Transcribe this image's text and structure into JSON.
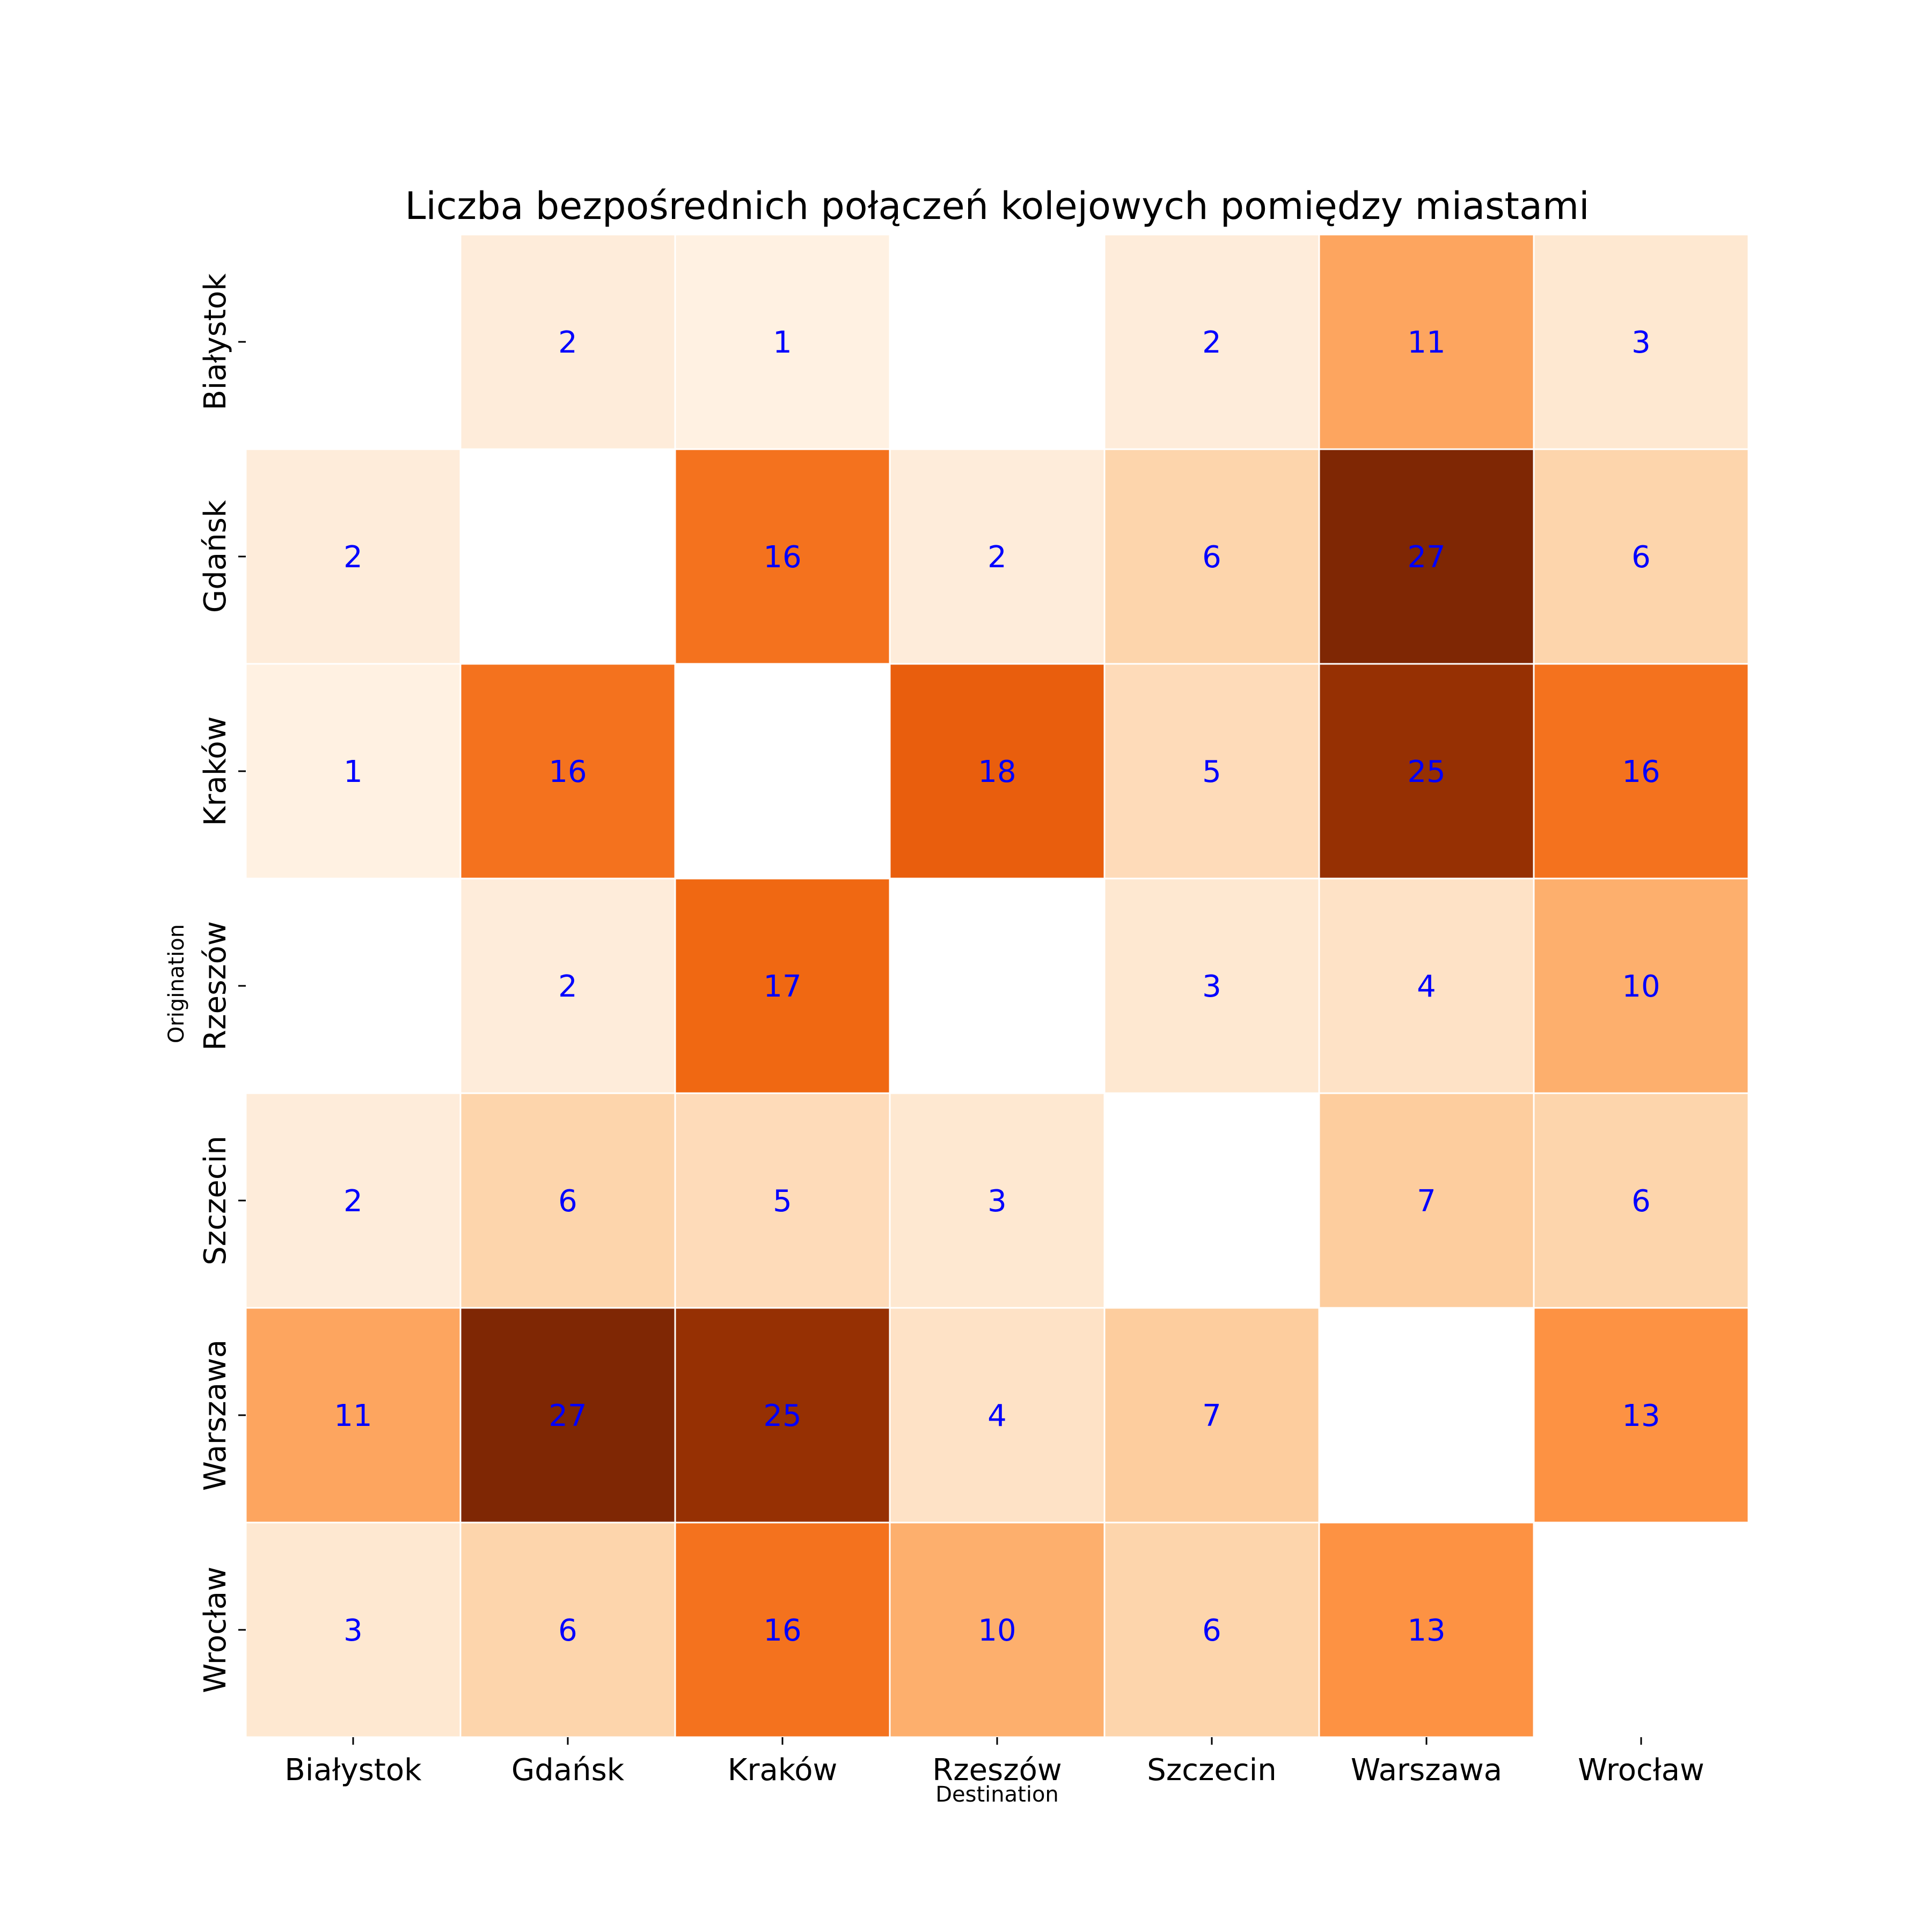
{
  "chart_data": {
    "type": "heatmap",
    "title": "Liczba bezpośrednich połączeń kolejowych pomiędzy miastami",
    "xlabel": "Destination",
    "ylabel": "Origination",
    "x_categories": [
      "Białystok",
      "Gdańsk",
      "Kraków",
      "Rzeszów",
      "Szczecin",
      "Warszawa",
      "Wrocław"
    ],
    "y_categories": [
      "Białystok",
      "Gdańsk",
      "Kraków",
      "Rzeszów",
      "Szczecin",
      "Warszawa",
      "Wrocław"
    ],
    "values": [
      [
        null,
        2,
        1,
        null,
        2,
        11,
        3
      ],
      [
        2,
        null,
        16,
        2,
        6,
        27,
        6
      ],
      [
        1,
        16,
        null,
        18,
        5,
        25,
        16
      ],
      [
        null,
        2,
        17,
        null,
        3,
        4,
        10
      ],
      [
        2,
        6,
        5,
        3,
        null,
        7,
        6
      ],
      [
        11,
        27,
        25,
        4,
        7,
        null,
        13
      ],
      [
        3,
        6,
        16,
        10,
        6,
        13,
        null
      ]
    ],
    "colormap": "Oranges",
    "value_range": [
      0,
      27
    ],
    "annotation_color": "#0000ff",
    "cell_border_color": "#ffffff",
    "grid": false,
    "legend": "none"
  }
}
